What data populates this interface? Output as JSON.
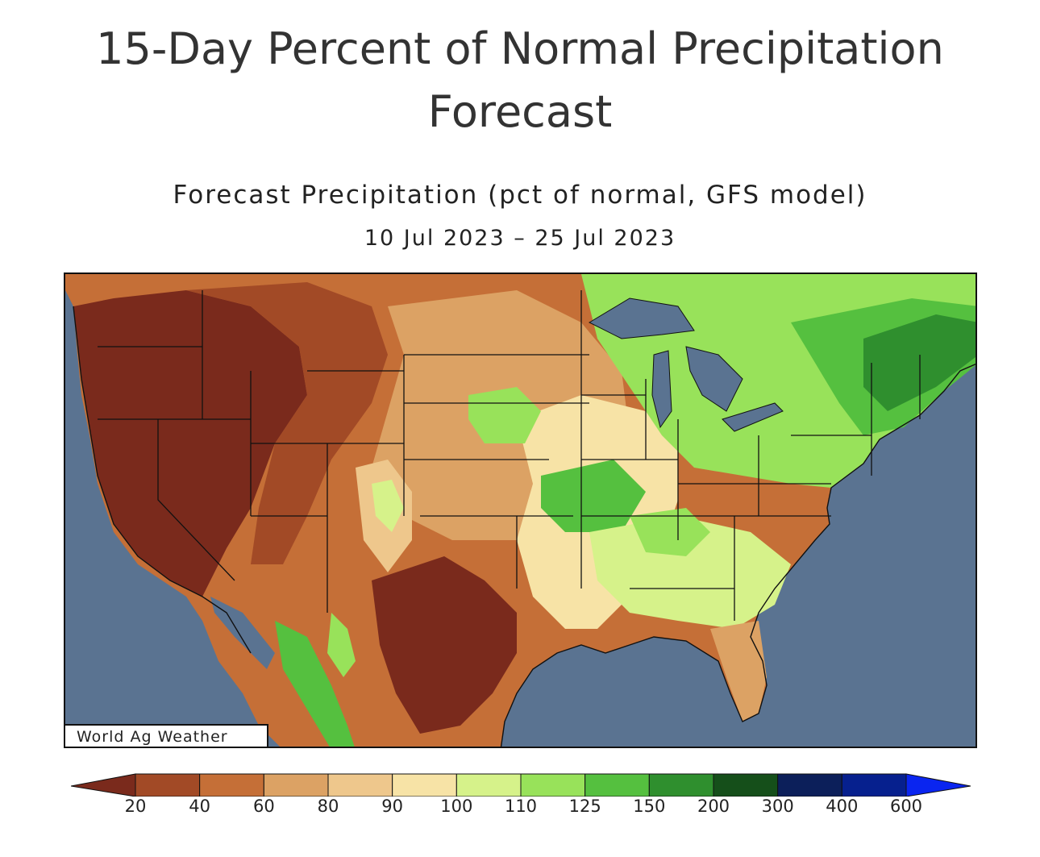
{
  "page": {
    "title_line1": "15-Day Percent of Normal Precipitation",
    "title_line2": "Forecast"
  },
  "map": {
    "title": "Forecast Precipitation (pct of normal, GFS model)",
    "dates": "10 Jul 2023 – 25 Jul 2023",
    "credit": "World Ag Weather",
    "ocean_color": "#5a7391"
  },
  "legend": {
    "labels": [
      "20",
      "40",
      "60",
      "80",
      "90",
      "100",
      "110",
      "125",
      "150",
      "200",
      "300",
      "400",
      "600"
    ],
    "colors": [
      "#7a2a1c",
      "#a24a26",
      "#c56f37",
      "#dca264",
      "#eec78c",
      "#f7e3a6",
      "#d6f28a",
      "#98e25a",
      "#55c03f",
      "#2f8f2e",
      "#154f1a",
      "#0c1f5a",
      "#06208e",
      "#0a25f0"
    ]
  }
}
